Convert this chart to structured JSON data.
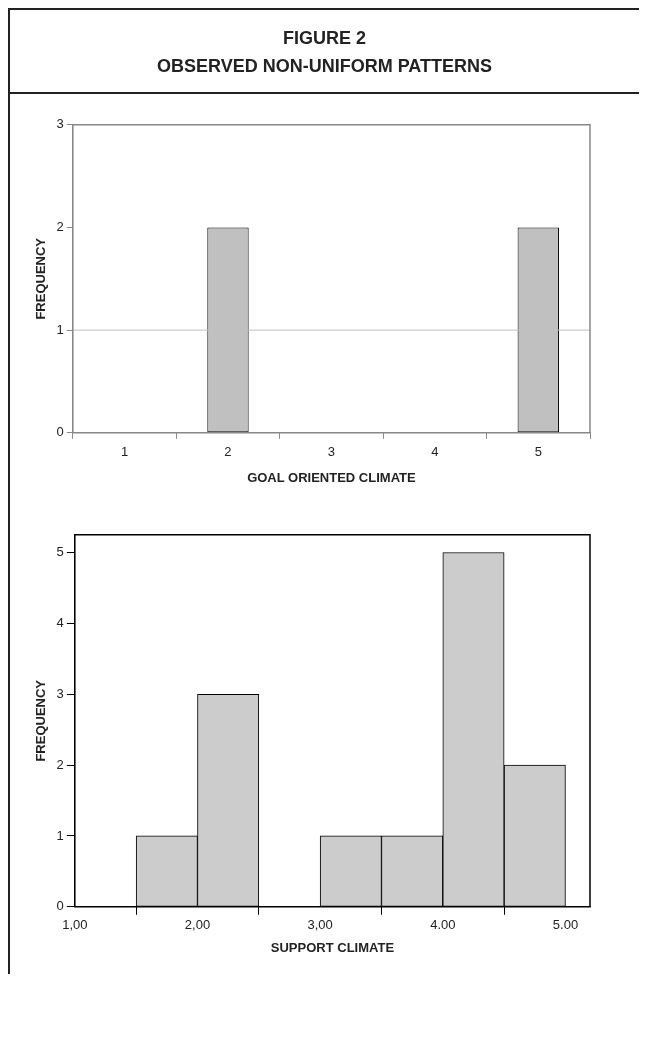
{
  "chart_data": [
    {
      "type": "bar",
      "title": "FIGURE 2",
      "subtitle": "OBSERVED NON-UNIFORM PATTERNS",
      "xlabel": "GOAL ORIENTED CLIMATE",
      "ylabel": "FREQUENCY",
      "categories": [
        "1",
        "2",
        "3",
        "4",
        "5"
      ],
      "values": [
        0,
        2,
        0,
        0,
        2
      ],
      "color": "#c0c0c0",
      "ylim": [
        0,
        3
      ],
      "yticks": [
        0,
        1,
        2,
        3
      ],
      "ref_lines": [
        {
          "axis": "y",
          "value": 1,
          "color": "#c0c0c0"
        }
      ]
    },
    {
      "type": "histogram",
      "xlabel": "SUPPORT CLIMATE",
      "ylabel": "FREQUENCY",
      "bins": [
        1.5,
        2,
        2.5,
        3,
        3.5,
        4,
        4.5,
        5
      ],
      "values": [
        1,
        3,
        0,
        1,
        1,
        5,
        2
      ],
      "color": "#cccccc",
      "xlim": [
        1,
        5.2
      ],
      "xticks": [
        {
          "value": 1,
          "label": "1,00"
        },
        {
          "value": 2,
          "label": "2,00"
        },
        {
          "value": 3,
          "label": "3,00"
        },
        {
          "value": 4,
          "label": "4.00"
        },
        {
          "value": 5,
          "label": "5.00"
        }
      ],
      "ylim": [
        0,
        5.25
      ],
      "yticks": [
        0,
        1,
        2,
        3,
        4,
        5
      ]
    }
  ]
}
